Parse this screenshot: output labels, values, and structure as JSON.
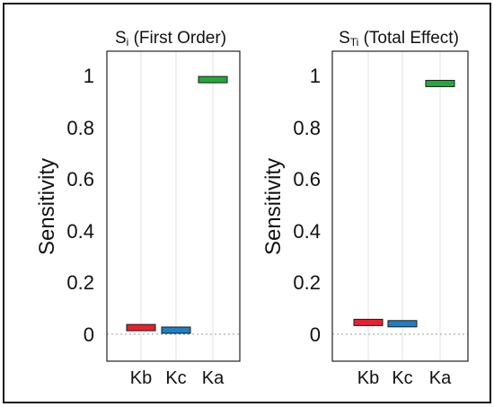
{
  "chart_data": [
    {
      "type": "bar",
      "title_main": "S",
      "title_sub": "i",
      "title_rest": " (First Order)",
      "ylabel": "Sensitivity",
      "categories": [
        "Kb",
        "Kc",
        "Ka"
      ],
      "values": [
        0.03,
        0.02,
        0.99
      ],
      "colors": [
        "#e8212e",
        "#1f7fc4",
        "#23a93b"
      ],
      "ylim": [
        -0.1,
        1.1
      ],
      "yticks": [
        "0",
        "0.2",
        "0.4",
        "0.6",
        "0.8",
        "1"
      ],
      "grid": "vertical"
    },
    {
      "type": "bar",
      "title_main": "S",
      "title_sub": "Ti",
      "title_rest": " (Total Effect)",
      "ylabel": "Sensitivity",
      "categories": [
        "Kb",
        "Kc",
        "Ka"
      ],
      "values": [
        0.05,
        0.045,
        0.975
      ],
      "colors": [
        "#e8212e",
        "#1f7fc4",
        "#23a93b"
      ],
      "ylim": [
        -0.1,
        1.1
      ],
      "yticks": [
        "0",
        "0.2",
        "0.4",
        "0.6",
        "0.8",
        "1"
      ],
      "grid": "vertical"
    }
  ]
}
